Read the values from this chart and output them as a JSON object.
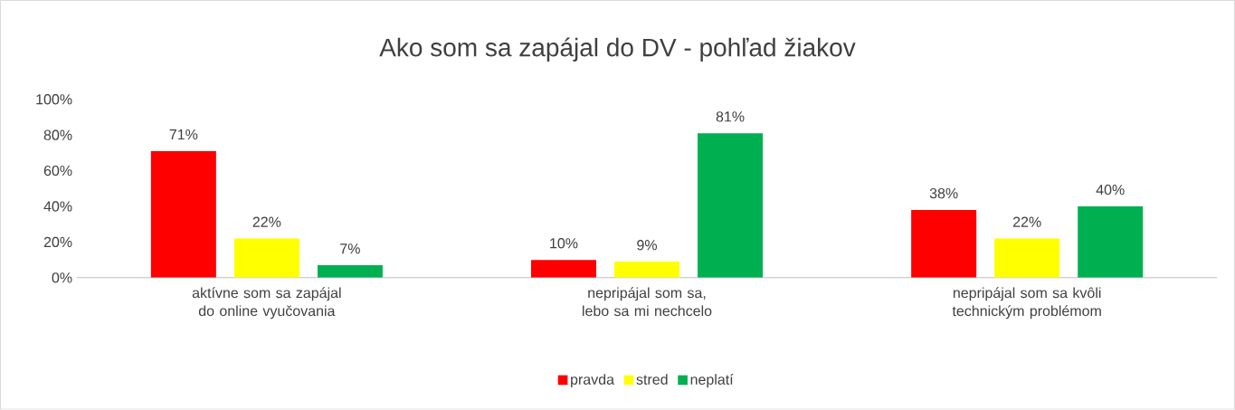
{
  "chart_data": {
    "type": "bar",
    "title": "Ako som sa zapájal do DV - pohľad žiakov",
    "categories": [
      "aktívne som sa zapájal do online vyučovania",
      "nepripájal som sa, lebo sa mi nechcelo",
      "nepripájal som sa kvôli technickým problémom"
    ],
    "series": [
      {
        "name": "pravda",
        "color": "#ff0000",
        "values": [
          71,
          10,
          38
        ],
        "value_labels": [
          "71%",
          "10%",
          "38%"
        ]
      },
      {
        "name": "stred",
        "color": "#ffff00",
        "values": [
          22,
          9,
          22
        ],
        "value_labels": [
          "22%",
          "9%",
          "22%"
        ]
      },
      {
        "name": "neplatí",
        "color": "#00b050",
        "values": [
          7,
          81,
          40
        ],
        "value_labels": [
          "7%",
          "81%",
          "40%"
        ]
      }
    ],
    "ylim": [
      0,
      100
    ],
    "yticks": [
      {
        "value": 0,
        "label": "0%"
      },
      {
        "value": 20,
        "label": "20%"
      },
      {
        "value": 40,
        "label": "40%"
      },
      {
        "value": 60,
        "label": "60%"
      },
      {
        "value": 80,
        "label": "80%"
      },
      {
        "value": 100,
        "label": "100%"
      }
    ],
    "legend": "bottom"
  }
}
